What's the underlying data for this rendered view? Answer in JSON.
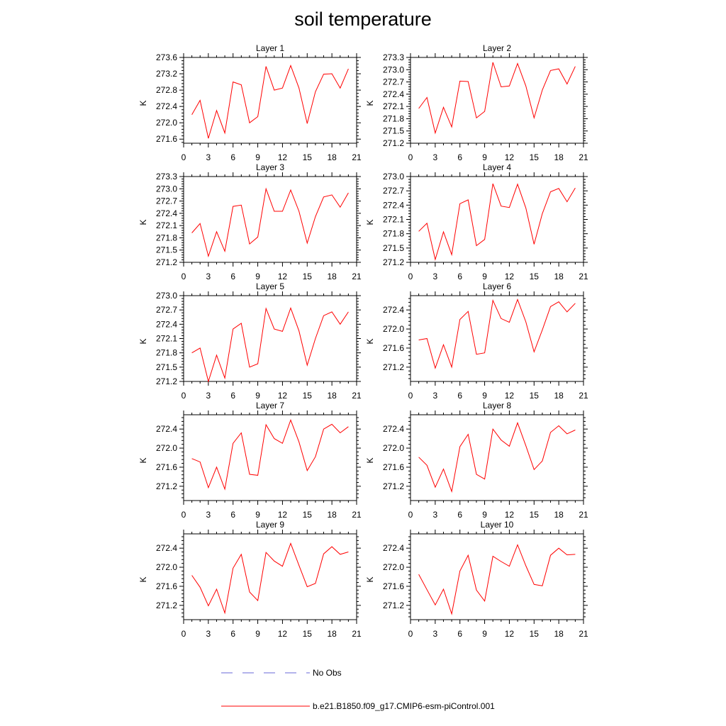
{
  "title": "soil temperature",
  "colors": {
    "model": "#ff0000",
    "obs": "#6a6ad8",
    "axis": "#000000"
  },
  "legend": {
    "obs_label": "No Obs",
    "model_label": "b.e21.B1850.f09_g17.CMIP6-esm-piControl.001"
  },
  "chart_data": [
    {
      "type": "line",
      "title": "Layer 1",
      "ylabel": "K",
      "xlim": [
        0,
        21
      ],
      "ylim": [
        271.5,
        273.6
      ],
      "xticks": [
        0,
        3,
        6,
        9,
        12,
        15,
        18,
        21
      ],
      "yticks": [
        "271.6",
        "272.0",
        "272.4",
        "272.8",
        "273.2",
        "273.6"
      ],
      "series": [
        {
          "x": [
            1,
            2,
            3,
            4,
            5,
            6,
            7,
            8,
            9,
            10,
            11,
            12,
            13,
            14,
            15,
            16,
            17,
            18,
            19,
            20
          ],
          "values": [
            272.2,
            272.55,
            271.62,
            272.3,
            271.75,
            273.0,
            272.93,
            272.0,
            272.15,
            273.38,
            272.8,
            272.85,
            273.4,
            272.85,
            271.98,
            272.76,
            273.19,
            273.2,
            272.85,
            273.32
          ]
        }
      ]
    },
    {
      "type": "line",
      "title": "Layer 2",
      "ylabel": "K",
      "xlim": [
        0,
        21
      ],
      "ylim": [
        271.2,
        273.3
      ],
      "xticks": [
        0,
        3,
        6,
        9,
        12,
        15,
        18,
        21
      ],
      "yticks": [
        "271.2",
        "271.5",
        "271.8",
        "272.1",
        "272.4",
        "272.7",
        "273.0",
        "273.3"
      ],
      "series": [
        {
          "x": [
            1,
            2,
            3,
            4,
            5,
            6,
            7,
            8,
            9,
            10,
            11,
            12,
            13,
            14,
            15,
            16,
            17,
            18,
            19,
            20
          ],
          "values": [
            272.05,
            272.32,
            271.45,
            272.08,
            271.6,
            272.72,
            272.71,
            271.82,
            271.98,
            273.18,
            272.58,
            272.6,
            273.15,
            272.6,
            271.82,
            272.5,
            272.98,
            273.02,
            272.65,
            273.08
          ]
        }
      ]
    },
    {
      "type": "line",
      "title": "Layer 3",
      "ylabel": "K",
      "xlim": [
        0,
        21
      ],
      "ylim": [
        271.2,
        273.3
      ],
      "xticks": [
        0,
        3,
        6,
        9,
        12,
        15,
        18,
        21
      ],
      "yticks": [
        "271.2",
        "271.5",
        "271.8",
        "272.1",
        "272.4",
        "272.7",
        "273.0",
        "273.3"
      ],
      "series": [
        {
          "x": [
            1,
            2,
            3,
            4,
            5,
            6,
            7,
            8,
            9,
            10,
            11,
            12,
            13,
            14,
            15,
            16,
            17,
            18,
            19,
            20
          ],
          "values": [
            271.92,
            272.15,
            271.35,
            271.95,
            271.47,
            272.57,
            272.6,
            271.65,
            271.82,
            273.0,
            272.45,
            272.45,
            272.97,
            272.45,
            271.67,
            272.32,
            272.8,
            272.85,
            272.55,
            272.9
          ]
        }
      ]
    },
    {
      "type": "line",
      "title": "Layer 4",
      "ylabel": "K",
      "xlim": [
        0,
        21
      ],
      "ylim": [
        271.2,
        273.0
      ],
      "xticks": [
        0,
        3,
        6,
        9,
        12,
        15,
        18,
        21
      ],
      "yticks": [
        "271.2",
        "271.5",
        "271.8",
        "272.1",
        "272.4",
        "272.7",
        "273.0"
      ],
      "series": [
        {
          "x": [
            1,
            2,
            3,
            4,
            5,
            6,
            7,
            8,
            9,
            10,
            11,
            12,
            13,
            14,
            15,
            16,
            17,
            18,
            19,
            20
          ],
          "values": [
            271.85,
            272.02,
            271.26,
            271.84,
            271.36,
            272.43,
            272.51,
            271.55,
            271.68,
            272.85,
            272.38,
            272.35,
            272.84,
            272.34,
            271.58,
            272.22,
            272.68,
            272.75,
            272.47,
            272.76
          ]
        }
      ]
    },
    {
      "type": "line",
      "title": "Layer 5",
      "ylabel": "K",
      "xlim": [
        0,
        21
      ],
      "ylim": [
        271.2,
        273.0
      ],
      "xticks": [
        0,
        3,
        6,
        9,
        12,
        15,
        18,
        21
      ],
      "yticks": [
        "271.2",
        "271.5",
        "271.8",
        "272.1",
        "272.4",
        "272.7",
        "273.0"
      ],
      "series": [
        {
          "x": [
            1,
            2,
            3,
            4,
            5,
            6,
            7,
            8,
            9,
            10,
            11,
            12,
            13,
            14,
            15,
            16,
            17,
            18,
            19,
            20
          ],
          "values": [
            271.8,
            271.9,
            271.2,
            271.75,
            271.27,
            272.3,
            272.42,
            271.5,
            271.57,
            272.73,
            272.3,
            272.25,
            272.74,
            272.26,
            271.54,
            272.1,
            272.58,
            272.66,
            272.4,
            272.66
          ]
        }
      ]
    },
    {
      "type": "line",
      "title": "Layer 6",
      "ylabel": "K",
      "xlim": [
        0,
        21
      ],
      "ylim": [
        270.9,
        272.7
      ],
      "xticks": [
        0,
        3,
        6,
        9,
        12,
        15,
        18,
        21
      ],
      "yticks": [
        "271.2",
        "271.6",
        "272.0",
        "272.4"
      ],
      "series": [
        {
          "x": [
            1,
            2,
            3,
            4,
            5,
            6,
            7,
            8,
            9,
            10,
            11,
            12,
            13,
            14,
            15,
            16,
            17,
            18,
            19,
            20
          ],
          "values": [
            271.77,
            271.8,
            271.18,
            271.67,
            271.2,
            272.2,
            272.37,
            271.47,
            271.5,
            272.6,
            272.22,
            272.14,
            272.62,
            272.15,
            271.52,
            271.98,
            272.47,
            272.57,
            272.36,
            272.54
          ]
        }
      ]
    },
    {
      "type": "line",
      "title": "Layer 7",
      "ylabel": "K",
      "xlim": [
        0,
        21
      ],
      "ylim": [
        270.9,
        272.7
      ],
      "xticks": [
        0,
        3,
        6,
        9,
        12,
        15,
        18,
        21
      ],
      "yticks": [
        "271.2",
        "271.6",
        "272.0",
        "272.4"
      ],
      "series": [
        {
          "x": [
            1,
            2,
            3,
            4,
            5,
            6,
            7,
            8,
            9,
            10,
            11,
            12,
            13,
            14,
            15,
            16,
            17,
            18,
            19,
            20
          ],
          "values": [
            271.78,
            271.71,
            271.17,
            271.6,
            271.14,
            272.1,
            272.32,
            271.45,
            271.43,
            272.49,
            272.2,
            272.1,
            272.59,
            272.13,
            271.53,
            271.82,
            272.4,
            272.5,
            272.32,
            272.45
          ]
        }
      ]
    },
    {
      "type": "line",
      "title": "Layer 8",
      "ylabel": "K",
      "xlim": [
        0,
        21
      ],
      "ylim": [
        270.9,
        272.7
      ],
      "xticks": [
        0,
        3,
        6,
        9,
        12,
        15,
        18,
        21
      ],
      "yticks": [
        "271.2",
        "271.6",
        "272.0",
        "272.4"
      ],
      "series": [
        {
          "x": [
            1,
            2,
            3,
            4,
            5,
            6,
            7,
            8,
            9,
            10,
            11,
            12,
            13,
            14,
            15,
            16,
            17,
            18,
            19,
            20
          ],
          "values": [
            271.81,
            271.64,
            271.18,
            271.56,
            271.09,
            272.03,
            272.29,
            271.45,
            271.35,
            272.4,
            272.17,
            272.04,
            272.53,
            272.05,
            271.55,
            271.73,
            272.33,
            272.47,
            272.3,
            272.38
          ]
        }
      ]
    },
    {
      "type": "line",
      "title": "Layer 9",
      "ylabel": "K",
      "xlim": [
        0,
        21
      ],
      "ylim": [
        270.9,
        272.7
      ],
      "xticks": [
        0,
        3,
        6,
        9,
        12,
        15,
        18,
        21
      ],
      "yticks": [
        "271.2",
        "271.6",
        "272.0",
        "272.4"
      ],
      "series": [
        {
          "x": [
            1,
            2,
            3,
            4,
            5,
            6,
            7,
            8,
            9,
            10,
            11,
            12,
            13,
            14,
            15,
            16,
            17,
            18,
            19,
            20
          ],
          "values": [
            271.83,
            271.58,
            271.19,
            271.54,
            271.04,
            271.98,
            272.27,
            271.48,
            271.3,
            272.31,
            272.13,
            272.02,
            272.5,
            272.04,
            271.59,
            271.66,
            272.28,
            272.43,
            272.27,
            272.32
          ]
        }
      ]
    },
    {
      "type": "line",
      "title": "Layer 10",
      "ylabel": "K",
      "xlim": [
        0,
        21
      ],
      "ylim": [
        270.9,
        272.7
      ],
      "xticks": [
        0,
        3,
        6,
        9,
        12,
        15,
        18,
        21
      ],
      "yticks": [
        "271.2",
        "271.6",
        "272.0",
        "272.4"
      ],
      "series": [
        {
          "x": [
            1,
            2,
            3,
            4,
            5,
            6,
            7,
            8,
            9,
            10,
            11,
            12,
            13,
            14,
            15,
            16,
            17,
            18,
            19,
            20
          ],
          "values": [
            271.85,
            271.53,
            271.21,
            271.54,
            271.02,
            271.92,
            272.25,
            271.52,
            271.29,
            272.23,
            272.12,
            272.02,
            272.47,
            272.03,
            271.64,
            271.61,
            272.25,
            272.4,
            272.26,
            272.27
          ]
        }
      ]
    }
  ]
}
